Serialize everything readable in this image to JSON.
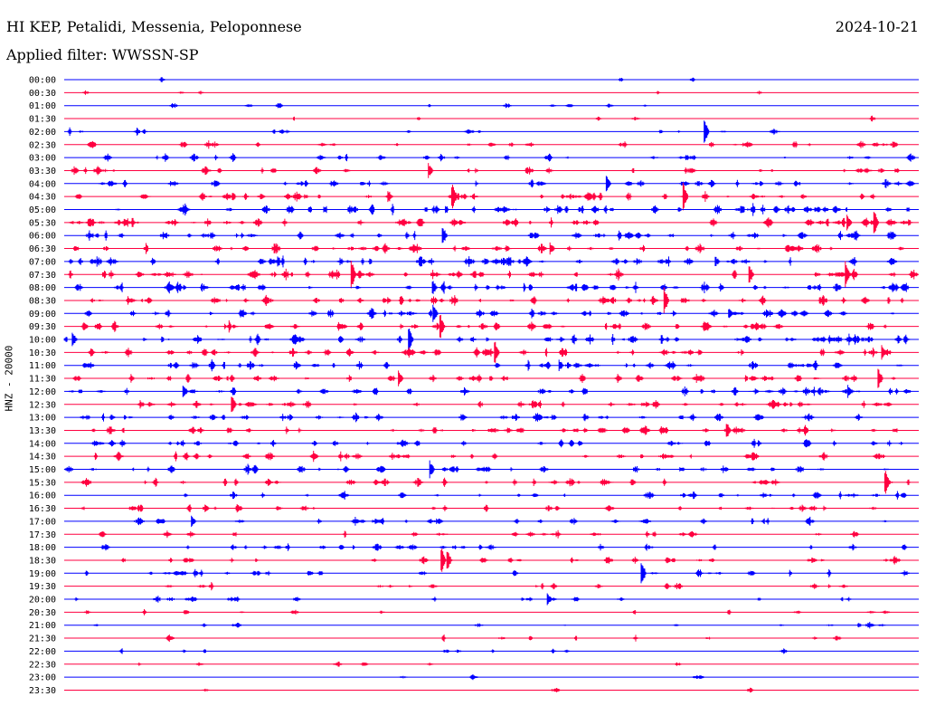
{
  "header": {
    "station": "HI KEP, Petalidi, Messenia, Peloponnese",
    "date": "2024-10-21",
    "filter": "Applied filter: WWSSN-SP"
  },
  "chart_data": {
    "type": "seismogram",
    "title": "HI KEP, Petalidi, Messenia, Peloponnese",
    "ylabel": "HNZ - 20000",
    "row_colors": [
      "#0000ff",
      "#ff0040"
    ],
    "time_labels": [
      "00:00",
      "00:30",
      "01:00",
      "01:30",
      "02:00",
      "02:30",
      "03:00",
      "03:30",
      "04:00",
      "04:30",
      "05:00",
      "05:30",
      "06:00",
      "06:30",
      "07:00",
      "07:30",
      "08:00",
      "08:30",
      "09:00",
      "09:30",
      "10:00",
      "10:30",
      "11:00",
      "11:30",
      "12:00",
      "12:30",
      "13:00",
      "13:30",
      "14:00",
      "14:30",
      "15:00",
      "15:30",
      "16:00",
      "16:30",
      "17:00",
      "17:30",
      "18:00",
      "18:30",
      "19:00",
      "19:30",
      "20:00",
      "20:30",
      "21:00",
      "21:30",
      "22:00",
      "22:30",
      "23:00",
      "23:30"
    ],
    "activity_level": [
      0.05,
      0.08,
      0.15,
      0.08,
      0.25,
      0.45,
      0.45,
      0.45,
      0.55,
      0.7,
      0.85,
      0.85,
      0.75,
      0.75,
      0.85,
      0.8,
      0.85,
      0.8,
      0.75,
      0.75,
      0.8,
      0.75,
      0.75,
      0.7,
      0.65,
      0.65,
      0.65,
      0.6,
      0.6,
      0.6,
      0.55,
      0.55,
      0.5,
      0.5,
      0.45,
      0.4,
      0.45,
      0.4,
      0.4,
      0.3,
      0.3,
      0.2,
      0.2,
      0.15,
      0.15,
      0.1,
      0.08,
      0.05
    ]
  }
}
